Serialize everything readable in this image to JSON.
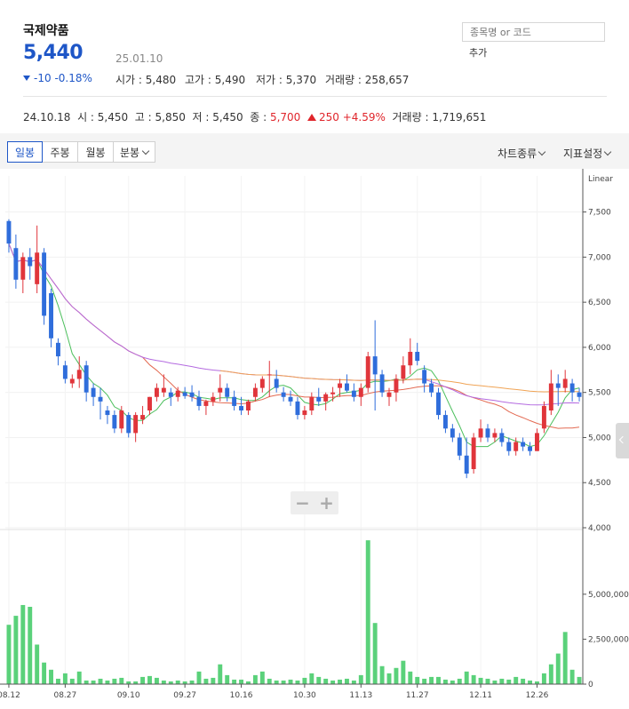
{
  "stock": {
    "name": "국제약품",
    "price": "5,440",
    "date": "25.01.10",
    "change": "-10",
    "change_pct": "-0.18%",
    "open_label": "시가 : ",
    "open": "5,480",
    "high_label": "고가 : ",
    "high": "5,490",
    "low_label": "저가 : ",
    "low": "5,370",
    "volume_label": "거래량 : ",
    "volume": "258,657"
  },
  "search": {
    "placeholder": "종목명 or 코드",
    "add_label": "추가"
  },
  "history": {
    "date": "24.10.18",
    "open_label": "시 : ",
    "open": "5,450",
    "high_label": "고 : ",
    "high": "5,850",
    "low_label": "저 : ",
    "low": "5,450",
    "close_label": "종 : ",
    "close": "5,700",
    "change": "250",
    "change_pct": "+4.59%",
    "volume_label": "거래량 : ",
    "volume": "1,719,651"
  },
  "toolbar": {
    "tabs": [
      {
        "label": "일봉",
        "active": true
      },
      {
        "label": "주봉",
        "active": false
      },
      {
        "label": "월봉",
        "active": false
      },
      {
        "label": "분봉",
        "active": false
      }
    ],
    "chart_type_label": "차트종류",
    "indicator_label": "지표설정"
  },
  "zoom": {
    "minus": "−",
    "plus": "+"
  },
  "colors": {
    "up": "#e0353b",
    "down": "#2f6ddb",
    "ma5": "#4bbf5c",
    "ma20": "#e36a52",
    "ma60": "#b46be0",
    "ma120": "#f0a354",
    "volume": "#5ad17a",
    "accent": "#1e56c7"
  },
  "chart_data": {
    "type": "candlestick",
    "scale_label": "Linear",
    "price_axis": {
      "ylim": [
        4000,
        7900
      ],
      "ticks": [
        "7,500",
        "7,000",
        "6,500",
        "6,000",
        "5,500",
        "5,000",
        "4,500",
        "4,000"
      ]
    },
    "volume_axis": {
      "ylim": [
        0,
        8500000
      ],
      "ticks": [
        "5,000,000",
        "2,500,000",
        "0"
      ]
    },
    "x_ticks": [
      "08.12",
      "08.27",
      "09.10",
      "09.27",
      "10.16",
      "10.30",
      "11.13",
      "11.27",
      "12.11",
      "12.26"
    ],
    "candles": [
      [
        7400,
        7420,
        7050,
        7150
      ],
      [
        7100,
        7250,
        6650,
        6750
      ],
      [
        6750,
        7050,
        6600,
        7000
      ],
      [
        7000,
        7100,
        6750,
        6900
      ],
      [
        6700,
        7350,
        6600,
        7050
      ],
      [
        7050,
        7100,
        6250,
        6350
      ],
      [
        6600,
        6650,
        6000,
        6100
      ],
      [
        6050,
        6100,
        5800,
        5900
      ],
      [
        5800,
        5850,
        5600,
        5650
      ],
      [
        5600,
        5700,
        5550,
        5650
      ],
      [
        5650,
        5900,
        5550,
        5750
      ],
      [
        5800,
        5850,
        5400,
        5500
      ],
      [
        5550,
        5600,
        5350,
        5450
      ],
      [
        5450,
        5550,
        5200,
        5400
      ],
      [
        5300,
        5350,
        5150,
        5250
      ],
      [
        5250,
        5300,
        5050,
        5100
      ],
      [
        5100,
        5350,
        5050,
        5300
      ],
      [
        5250,
        5280,
        5000,
        5050
      ],
      [
        5050,
        5280,
        4950,
        5250
      ],
      [
        5200,
        5350,
        5150,
        5250
      ],
      [
        5300,
        5450,
        5250,
        5450
      ],
      [
        5450,
        5600,
        5400,
        5550
      ],
      [
        5500,
        5700,
        5450,
        5550
      ],
      [
        5500,
        5550,
        5350,
        5450
      ],
      [
        5450,
        5560,
        5400,
        5520
      ],
      [
        5500,
        5560,
        5430,
        5460
      ],
      [
        5500,
        5580,
        5400,
        5450
      ],
      [
        5450,
        5520,
        5300,
        5350
      ],
      [
        5350,
        5420,
        5250,
        5400
      ],
      [
        5400,
        5500,
        5350,
        5450
      ],
      [
        5500,
        5700,
        5400,
        5550
      ],
      [
        5550,
        5600,
        5400,
        5450
      ],
      [
        5450,
        5520,
        5300,
        5350
      ],
      [
        5350,
        5450,
        5250,
        5300
      ],
      [
        5300,
        5420,
        5250,
        5400
      ],
      [
        5450,
        5600,
        5400,
        5550
      ],
      [
        5550,
        5680,
        5500,
        5650
      ],
      [
        5700,
        5850,
        5450,
        5700
      ],
      [
        5650,
        5750,
        5500,
        5550
      ],
      [
        5500,
        5560,
        5400,
        5450
      ],
      [
        5450,
        5520,
        5350,
        5400
      ],
      [
        5400,
        5450,
        5200,
        5250
      ],
      [
        5250,
        5350,
        5200,
        5300
      ],
      [
        5300,
        5500,
        5250,
        5450
      ],
      [
        5450,
        5550,
        5350,
        5400
      ],
      [
        5400,
        5500,
        5300,
        5480
      ],
      [
        5480,
        5560,
        5400,
        5500
      ],
      [
        5550,
        5650,
        5450,
        5600
      ],
      [
        5600,
        5700,
        5500,
        5520
      ],
      [
        5520,
        5600,
        5400,
        5450
      ],
      [
        5450,
        5600,
        5350,
        5550
      ],
      [
        5550,
        5950,
        5500,
        5900
      ],
      [
        5900,
        6300,
        5300,
        5700
      ],
      [
        5700,
        5750,
        5450,
        5500
      ],
      [
        5450,
        5550,
        5350,
        5500
      ],
      [
        5500,
        5700,
        5400,
        5650
      ],
      [
        5650,
        5900,
        5600,
        5800
      ],
      [
        5800,
        6100,
        5700,
        5950
      ],
      [
        5950,
        6050,
        5800,
        5850
      ],
      [
        5750,
        5800,
        5500,
        5600
      ],
      [
        5600,
        5650,
        5450,
        5500
      ],
      [
        5500,
        5550,
        5200,
        5250
      ],
      [
        5250,
        5300,
        5050,
        5100
      ],
      [
        5100,
        5150,
        4950,
        5000
      ],
      [
        5000,
        5050,
        4750,
        4800
      ],
      [
        4800,
        5000,
        4550,
        4600
      ],
      [
        4650,
        5050,
        4600,
        5000
      ],
      [
        5000,
        5200,
        4950,
        5100
      ],
      [
        5100,
        5150,
        4950,
        5000
      ],
      [
        5000,
        5100,
        4950,
        5050
      ],
      [
        5050,
        5100,
        4900,
        4950
      ],
      [
        4950,
        5000,
        4800,
        4850
      ],
      [
        4850,
        5000,
        4800,
        4950
      ],
      [
        4950,
        5000,
        4850,
        4900
      ],
      [
        4900,
        4950,
        4800,
        4850
      ],
      [
        4850,
        5100,
        4850,
        5050
      ],
      [
        5100,
        5400,
        5050,
        5350
      ],
      [
        5300,
        5750,
        5250,
        5600
      ],
      [
        5600,
        5700,
        5350,
        5550
      ],
      [
        5550,
        5750,
        5500,
        5650
      ],
      [
        5600,
        5650,
        5400,
        5500
      ],
      [
        5500,
        5550,
        5400,
        5450
      ]
    ],
    "volumes": [
      3300000,
      3800000,
      4400000,
      4300000,
      2200000,
      1200000,
      800000,
      300000,
      600000,
      300000,
      700000,
      200000,
      200000,
      300000,
      200000,
      300000,
      350000,
      150000,
      150000,
      400000,
      450000,
      350000,
      200000,
      150000,
      200000,
      150000,
      200000,
      700000,
      300000,
      350000,
      1100000,
      500000,
      250000,
      250000,
      150000,
      500000,
      700000,
      300000,
      200000,
      200000,
      250000,
      200000,
      350000,
      600000,
      400000,
      300000,
      200000,
      250000,
      300000,
      200000,
      500000,
      8000000,
      3400000,
      1000000,
      600000,
      900000,
      1300000,
      700000,
      400000,
      300000,
      400000,
      400000,
      250000,
      200000,
      300000,
      700000,
      500000,
      350000,
      300000,
      200000,
      300000,
      250000,
      400000,
      300000,
      200000,
      150000,
      600000,
      1100000,
      1700000,
      2900000,
      800000,
      400000
    ]
  }
}
